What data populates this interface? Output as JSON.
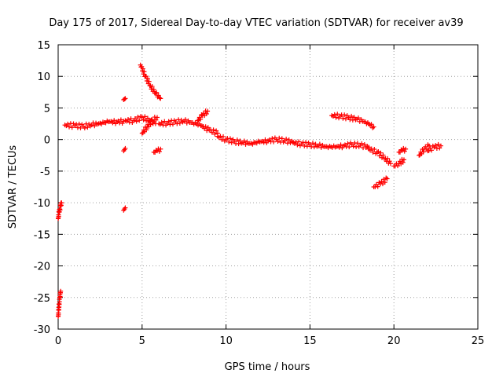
{
  "chart_data": {
    "type": "scatter",
    "title": "Day 175 of 2017, Sidereal Day-to-day VTEC variation (SDTVAR) for receiver av39",
    "xlabel": "GPS time / hours",
    "ylabel": "SDTVAR / TECUs",
    "xlim": [
      0,
      25
    ],
    "ylim": [
      -30,
      15
    ],
    "xticks": [
      0,
      5,
      10,
      15,
      20,
      25
    ],
    "yticks": [
      15,
      10,
      5,
      0,
      -5,
      -10,
      -15,
      -20,
      -25,
      -30
    ],
    "grid": true,
    "marker": "plus",
    "series_color": "#ff0000",
    "segments": [
      {
        "x": [
          0.0,
          0.05,
          0.1,
          0.15,
          0.2
        ],
        "y": [
          -12.5,
          -11.5,
          -11.0,
          -10.5,
          -10.0
        ]
      },
      {
        "x": [
          0.0,
          0.03,
          0.06,
          0.1,
          0.15
        ],
        "y": [
          -28.0,
          -27.0,
          -26.0,
          -25.0,
          -24.0
        ]
      },
      {
        "x": [
          0.4,
          1.0,
          1.5,
          2.0,
          2.5,
          3.0,
          3.5,
          3.9
        ],
        "y": [
          2.3,
          2.2,
          2.1,
          2.3,
          2.6,
          2.8,
          2.8,
          2.9
        ]
      },
      {
        "x": [
          4.0,
          4.5,
          5.0,
          5.5,
          5.8
        ],
        "y": [
          3.0,
          3.0,
          3.5,
          3.0,
          2.5
        ]
      },
      {
        "x": [
          4.9,
          5.2,
          5.5,
          5.8,
          6.1
        ],
        "y": [
          11.8,
          10.0,
          8.5,
          7.3,
          6.5
        ]
      },
      {
        "x": [
          5.0,
          5.3,
          5.6,
          5.9
        ],
        "y": [
          1.0,
          2.0,
          3.0,
          3.5
        ]
      },
      {
        "x": [
          5.7,
          5.9,
          6.1
        ],
        "y": [
          -2.0,
          -1.8,
          -1.5
        ]
      },
      {
        "x": [
          3.9,
          3.95,
          4.0
        ],
        "y": [
          6.3,
          6.4,
          6.5
        ]
      },
      {
        "x": [
          3.9,
          3.95,
          4.0
        ],
        "y": [
          -1.8,
          -1.6,
          -1.4
        ]
      },
      {
        "x": [
          3.9,
          3.95,
          4.0
        ],
        "y": [
          -11.2,
          -11.0,
          -10.8
        ]
      },
      {
        "x": [
          6.0,
          6.5,
          7.0,
          7.5,
          8.0,
          8.5,
          9.0,
          9.5
        ],
        "y": [
          2.5,
          2.6,
          2.8,
          2.9,
          2.7,
          2.2,
          1.5,
          1.0
        ]
      },
      {
        "x": [
          8.3,
          8.6,
          8.9
        ],
        "y": [
          3.0,
          3.8,
          4.5
        ]
      },
      {
        "x": [
          9.5,
          10.0,
          10.5,
          11.0,
          11.5,
          12.0,
          12.5,
          13.0,
          13.5,
          14.0
        ],
        "y": [
          0.5,
          0.0,
          -0.3,
          -0.5,
          -0.6,
          -0.4,
          -0.2,
          0.0,
          -0.2,
          -0.4
        ]
      },
      {
        "x": [
          14.0,
          14.5,
          15.0,
          15.5,
          16.0,
          16.5,
          17.0,
          17.5,
          18.0,
          18.5
        ],
        "y": [
          -0.5,
          -0.7,
          -0.8,
          -1.0,
          -1.1,
          -1.2,
          -1.0,
          -0.8,
          -0.9,
          -1.2
        ]
      },
      {
        "x": [
          18.5,
          19.0,
          19.5,
          19.8
        ],
        "y": [
          -1.5,
          -2.0,
          -3.0,
          -3.8
        ]
      },
      {
        "x": [
          16.3,
          16.8,
          17.3,
          17.8,
          18.3,
          18.8
        ],
        "y": [
          3.8,
          3.7,
          3.5,
          3.2,
          2.8,
          2.0
        ]
      },
      {
        "x": [
          18.8,
          19.2,
          19.6
        ],
        "y": [
          -7.5,
          -7.0,
          -6.2
        ]
      },
      {
        "x": [
          20.0,
          20.3,
          20.6
        ],
        "y": [
          -4.2,
          -3.8,
          -3.2
        ]
      },
      {
        "x": [
          20.3,
          20.5,
          20.7
        ],
        "y": [
          -2.0,
          -1.7,
          -1.5
        ]
      },
      {
        "x": [
          21.5,
          21.8,
          22.1
        ],
        "y": [
          -2.5,
          -1.5,
          -1.0
        ]
      },
      {
        "x": [
          22.0,
          22.4,
          22.8
        ],
        "y": [
          -1.8,
          -1.2,
          -1.0
        ]
      }
    ]
  }
}
